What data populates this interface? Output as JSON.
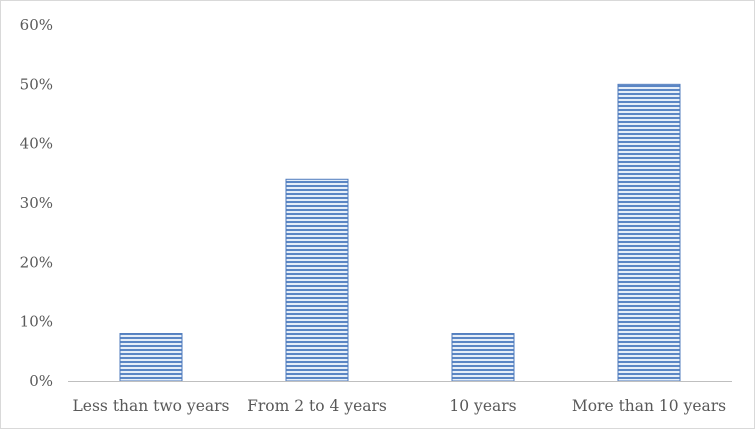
{
  "chart_data": {
    "type": "bar",
    "title": "",
    "xlabel": "",
    "ylabel": "",
    "categories": [
      "Less than two years",
      "From 2 to 4 years",
      "10 years",
      "More than 10 years"
    ],
    "values": [
      8,
      34,
      8,
      50
    ],
    "ylim": [
      0,
      60
    ],
    "yticks": [
      0,
      10,
      20,
      30,
      40,
      50,
      60
    ],
    "ytick_labels": [
      "0%",
      "10%",
      "20%",
      "30%",
      "40%",
      "50%",
      "60%"
    ],
    "grid": false,
    "legend": "none",
    "bar_pattern": "horizontal-stripes",
    "colors": {
      "bar_stripe": "#5b86c4",
      "bar_light": "#e6eef8",
      "bar_outline": "#4f7bbd",
      "axis": "#bfbfbf",
      "text": "#595959"
    }
  }
}
